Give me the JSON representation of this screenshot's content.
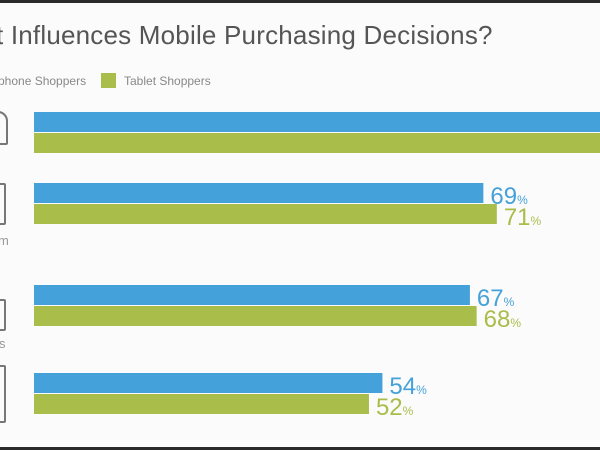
{
  "chart_data": {
    "type": "bar",
    "orientation": "horizontal",
    "title": "t Influences Mobile Purchasing Decisions?",
    "categories": [
      "",
      "m",
      "s",
      ""
    ],
    "series": [
      {
        "name": "phone Shoppers",
        "color": "#45a1d9",
        "values": [
          null,
          69,
          67,
          54
        ],
        "labels": [
          "",
          "69",
          "67",
          "54"
        ]
      },
      {
        "name": "Tablet Shoppers",
        "color": "#a9bd4a",
        "values": [
          null,
          71,
          68,
          52
        ],
        "labels": [
          "",
          "71",
          "68",
          "52"
        ]
      }
    ],
    "unit": "%",
    "xlabel": "",
    "ylabel": "",
    "grid": false,
    "legend": "top-left"
  }
}
